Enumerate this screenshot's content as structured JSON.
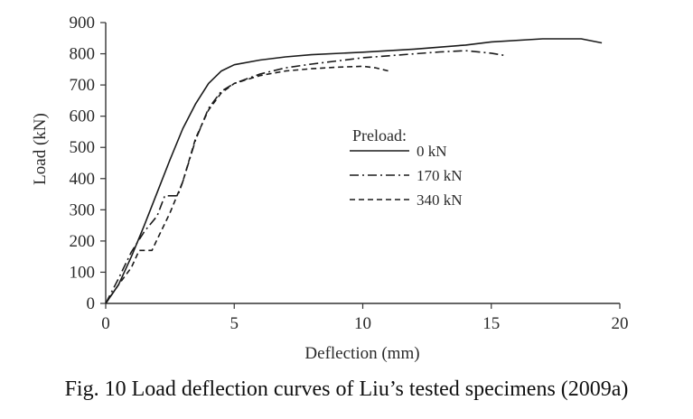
{
  "chart_data": {
    "type": "line",
    "xlabel": "Deflection (mm)",
    "ylabel": "Load (kN)",
    "xlim": [
      0,
      20
    ],
    "ylim": [
      0,
      900
    ],
    "xticks": [
      0,
      5,
      10,
      15,
      20
    ],
    "xtick_labels": [
      "0",
      "5",
      "10",
      "15",
      "20"
    ],
    "yticks": [
      0,
      100,
      200,
      300,
      400,
      500,
      600,
      700,
      800,
      900
    ],
    "ytick_labels": [
      "0",
      "100",
      "200",
      "300",
      "400",
      "500",
      "600",
      "700",
      "800",
      "900"
    ],
    "grid": false,
    "legend": {
      "title": "Preload:",
      "position": "center-right"
    },
    "series": [
      {
        "name": "0 kN",
        "style": "solid",
        "points": [
          [
            0,
            0
          ],
          [
            0.5,
            60
          ],
          [
            1,
            150
          ],
          [
            1.5,
            250
          ],
          [
            2,
            355
          ],
          [
            2.5,
            460
          ],
          [
            3,
            560
          ],
          [
            3.5,
            640
          ],
          [
            4,
            705
          ],
          [
            4.5,
            745
          ],
          [
            5,
            765
          ],
          [
            6,
            780
          ],
          [
            7,
            790
          ],
          [
            8,
            797
          ],
          [
            10,
            805
          ],
          [
            12,
            815
          ],
          [
            14,
            828
          ],
          [
            15,
            838
          ],
          [
            17,
            848
          ],
          [
            18.5,
            848
          ],
          [
            19.3,
            835
          ]
        ]
      },
      {
        "name": "170 kN",
        "style": "dash-dot",
        "points": [
          [
            0,
            0
          ],
          [
            0.5,
            80
          ],
          [
            1,
            165
          ],
          [
            1.5,
            230
          ],
          [
            2,
            280
          ],
          [
            2.3,
            345
          ],
          [
            2.8,
            345
          ],
          [
            3,
            390
          ],
          [
            3.5,
            525
          ],
          [
            4,
            625
          ],
          [
            4.5,
            680
          ],
          [
            5,
            705
          ],
          [
            6,
            735
          ],
          [
            7,
            755
          ],
          [
            8,
            767
          ],
          [
            10,
            787
          ],
          [
            12,
            800
          ],
          [
            13,
            806
          ],
          [
            14,
            810
          ],
          [
            15,
            802
          ],
          [
            15.5,
            795
          ]
        ]
      },
      {
        "name": "340 kN",
        "style": "dashed",
        "points": [
          [
            0,
            0
          ],
          [
            0.5,
            60
          ],
          [
            1,
            115
          ],
          [
            1.3,
            170
          ],
          [
            1.8,
            170
          ],
          [
            2,
            205
          ],
          [
            2.5,
            290
          ],
          [
            3,
            390
          ],
          [
            3.5,
            530
          ],
          [
            4,
            620
          ],
          [
            4.5,
            675
          ],
          [
            5,
            705
          ],
          [
            6,
            730
          ],
          [
            7,
            745
          ],
          [
            8,
            752
          ],
          [
            9,
            757
          ],
          [
            10,
            760
          ],
          [
            10.5,
            755
          ],
          [
            11,
            745
          ]
        ]
      }
    ],
    "caption": "Fig. 10 Load deflection curves of Liu’s tested specimens (2009a)"
  }
}
